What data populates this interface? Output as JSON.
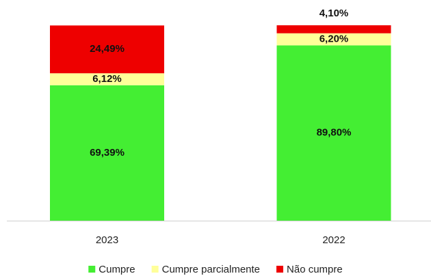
{
  "chart_data": {
    "type": "stacked_bar",
    "categories": [
      "2023",
      "2022"
    ],
    "series": [
      {
        "name": "Cumpre",
        "color": "#44ee33",
        "values": [
          69.39,
          89.8
        ],
        "value_labels": [
          "69,39%",
          "89,80%"
        ]
      },
      {
        "name": "Cumpre parcialmente",
        "color": "#ffff99",
        "values": [
          6.12,
          6.2
        ],
        "value_labels": [
          "6,12%",
          "6,20%"
        ]
      },
      {
        "name": "Não cumpre",
        "color": "#ee0000",
        "values": [
          24.49,
          4.1
        ],
        "value_labels": [
          "24,49%",
          "4,10%"
        ]
      }
    ],
    "legend": "bottom"
  }
}
